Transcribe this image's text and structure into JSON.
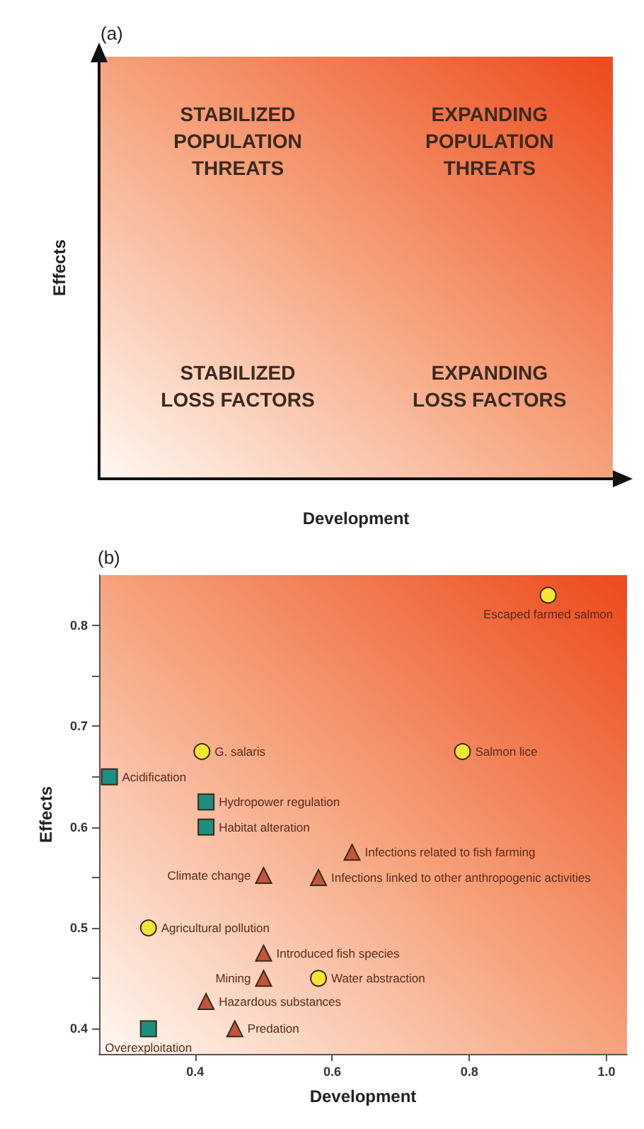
{
  "chart_data": [
    {
      "type": "other",
      "title": "(a)",
      "xlabel": "Development",
      "ylabel": "Effects",
      "annotations": [
        "STABILIZED\nPOPULATION\nTHREATS",
        "EXPANDING\nPOPULATION\nTHREATS",
        "STABILIZED\nLOSS FACTORS",
        "EXPANDING\nLOSS FACTORS"
      ]
    },
    {
      "type": "scatter",
      "title": "(b)",
      "xlabel": "Development",
      "ylabel": "Effects",
      "xlim": [
        0.26,
        1.03
      ],
      "xticks": [
        0.4,
        0.6,
        0.8,
        {
          "value": 1.0,
          "label": "1.0"
        }
      ],
      "ylim": [
        0.375,
        0.85
      ],
      "yticks": [
        0.4,
        {
          "value": 0.45,
          "label": null
        },
        0.5,
        {
          "value": 0.55,
          "label": null
        },
        0.6,
        {
          "value": 0.65,
          "label": null
        },
        0.7,
        {
          "value": 0.75,
          "label": null
        },
        0.8
      ],
      "series": [
        {
          "color": "#f2e634",
          "marker": "circle",
          "x": [
            0.915,
            0.41,
            0.79,
            0.332,
            0.58
          ],
          "values": [
            0.83,
            0.675,
            0.675,
            0.5,
            0.45
          ],
          "value_labels": [
            "Escaped farmed salmon",
            "G. salaris",
            "Salmon lice",
            "Agricultural pollution",
            "Water abstraction"
          ]
        },
        {
          "color": "#1c8f80",
          "marker": "square",
          "x": [
            0.275,
            0.416,
            0.416,
            0.332
          ],
          "values": [
            0.65,
            0.625,
            0.6,
            0.4
          ],
          "value_labels": [
            "Acidification",
            "Hydropower regulation",
            "Habitat alteration",
            "Overexploitation"
          ]
        },
        {
          "color": "#c2553a",
          "marker": "triangle",
          "x": [
            0.629,
            0.5,
            0.58,
            0.5,
            0.5,
            0.416,
            0.458
          ],
          "values": [
            0.575,
            0.552,
            0.55,
            0.475,
            0.45,
            0.427,
            0.4
          ],
          "value_labels": [
            "Infections related to fish farming",
            "Climate change",
            "Infections linked to other anthropogenic activities",
            "Introduced fish species",
            "Mining",
            "Hazardous substances",
            "Predation"
          ]
        }
      ]
    }
  ]
}
